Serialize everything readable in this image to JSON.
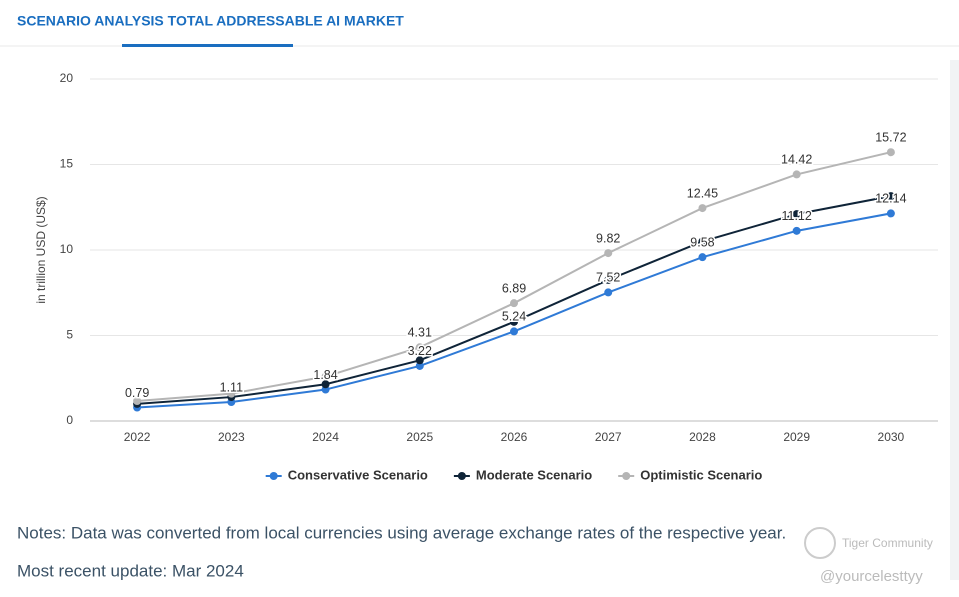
{
  "header": {
    "title": "SCENARIO ANALYSIS TOTAL ADDRESSABLE AI MARKET"
  },
  "chart_data": {
    "type": "line",
    "y_axis_label": "in trillion USD (US$)",
    "categories": [
      "2022",
      "2023",
      "2024",
      "2025",
      "2026",
      "2027",
      "2028",
      "2029",
      "2030"
    ],
    "series": [
      {
        "name": "Conservative Scenario",
        "color": "#2f7ad6",
        "data_labels": true,
        "values": [
          0.79,
          1.11,
          1.84,
          3.22,
          5.24,
          7.52,
          9.58,
          11.12,
          12.14
        ]
      },
      {
        "name": "Moderate Scenario",
        "color": "#0f2438",
        "values": [
          1.0,
          1.4,
          2.15,
          3.55,
          5.8,
          8.25,
          10.5,
          12.1,
          13.15
        ]
      },
      {
        "name": "Optimistic Scenario",
        "color": "#b5b5b5",
        "values": [
          1.17,
          1.6,
          2.6,
          4.31,
          6.89,
          9.82,
          12.45,
          14.42,
          15.72
        ],
        "value_labels": [
          null,
          null,
          null,
          "4.31",
          "6.89",
          "9.82",
          "12.45",
          "14.42",
          "15.72"
        ]
      }
    ],
    "ylim": [
      0,
      20
    ],
    "yticks": [
      0,
      5,
      10,
      15,
      20
    ],
    "grid": true,
    "legend": "bottom"
  },
  "notes": "Notes: Data was converted from local currencies using average exchange rates of the respective year.",
  "update": "Most recent update: Mar 2024",
  "watermark": {
    "brand": "Tiger Community",
    "handle": "@yourcelesttyy"
  }
}
